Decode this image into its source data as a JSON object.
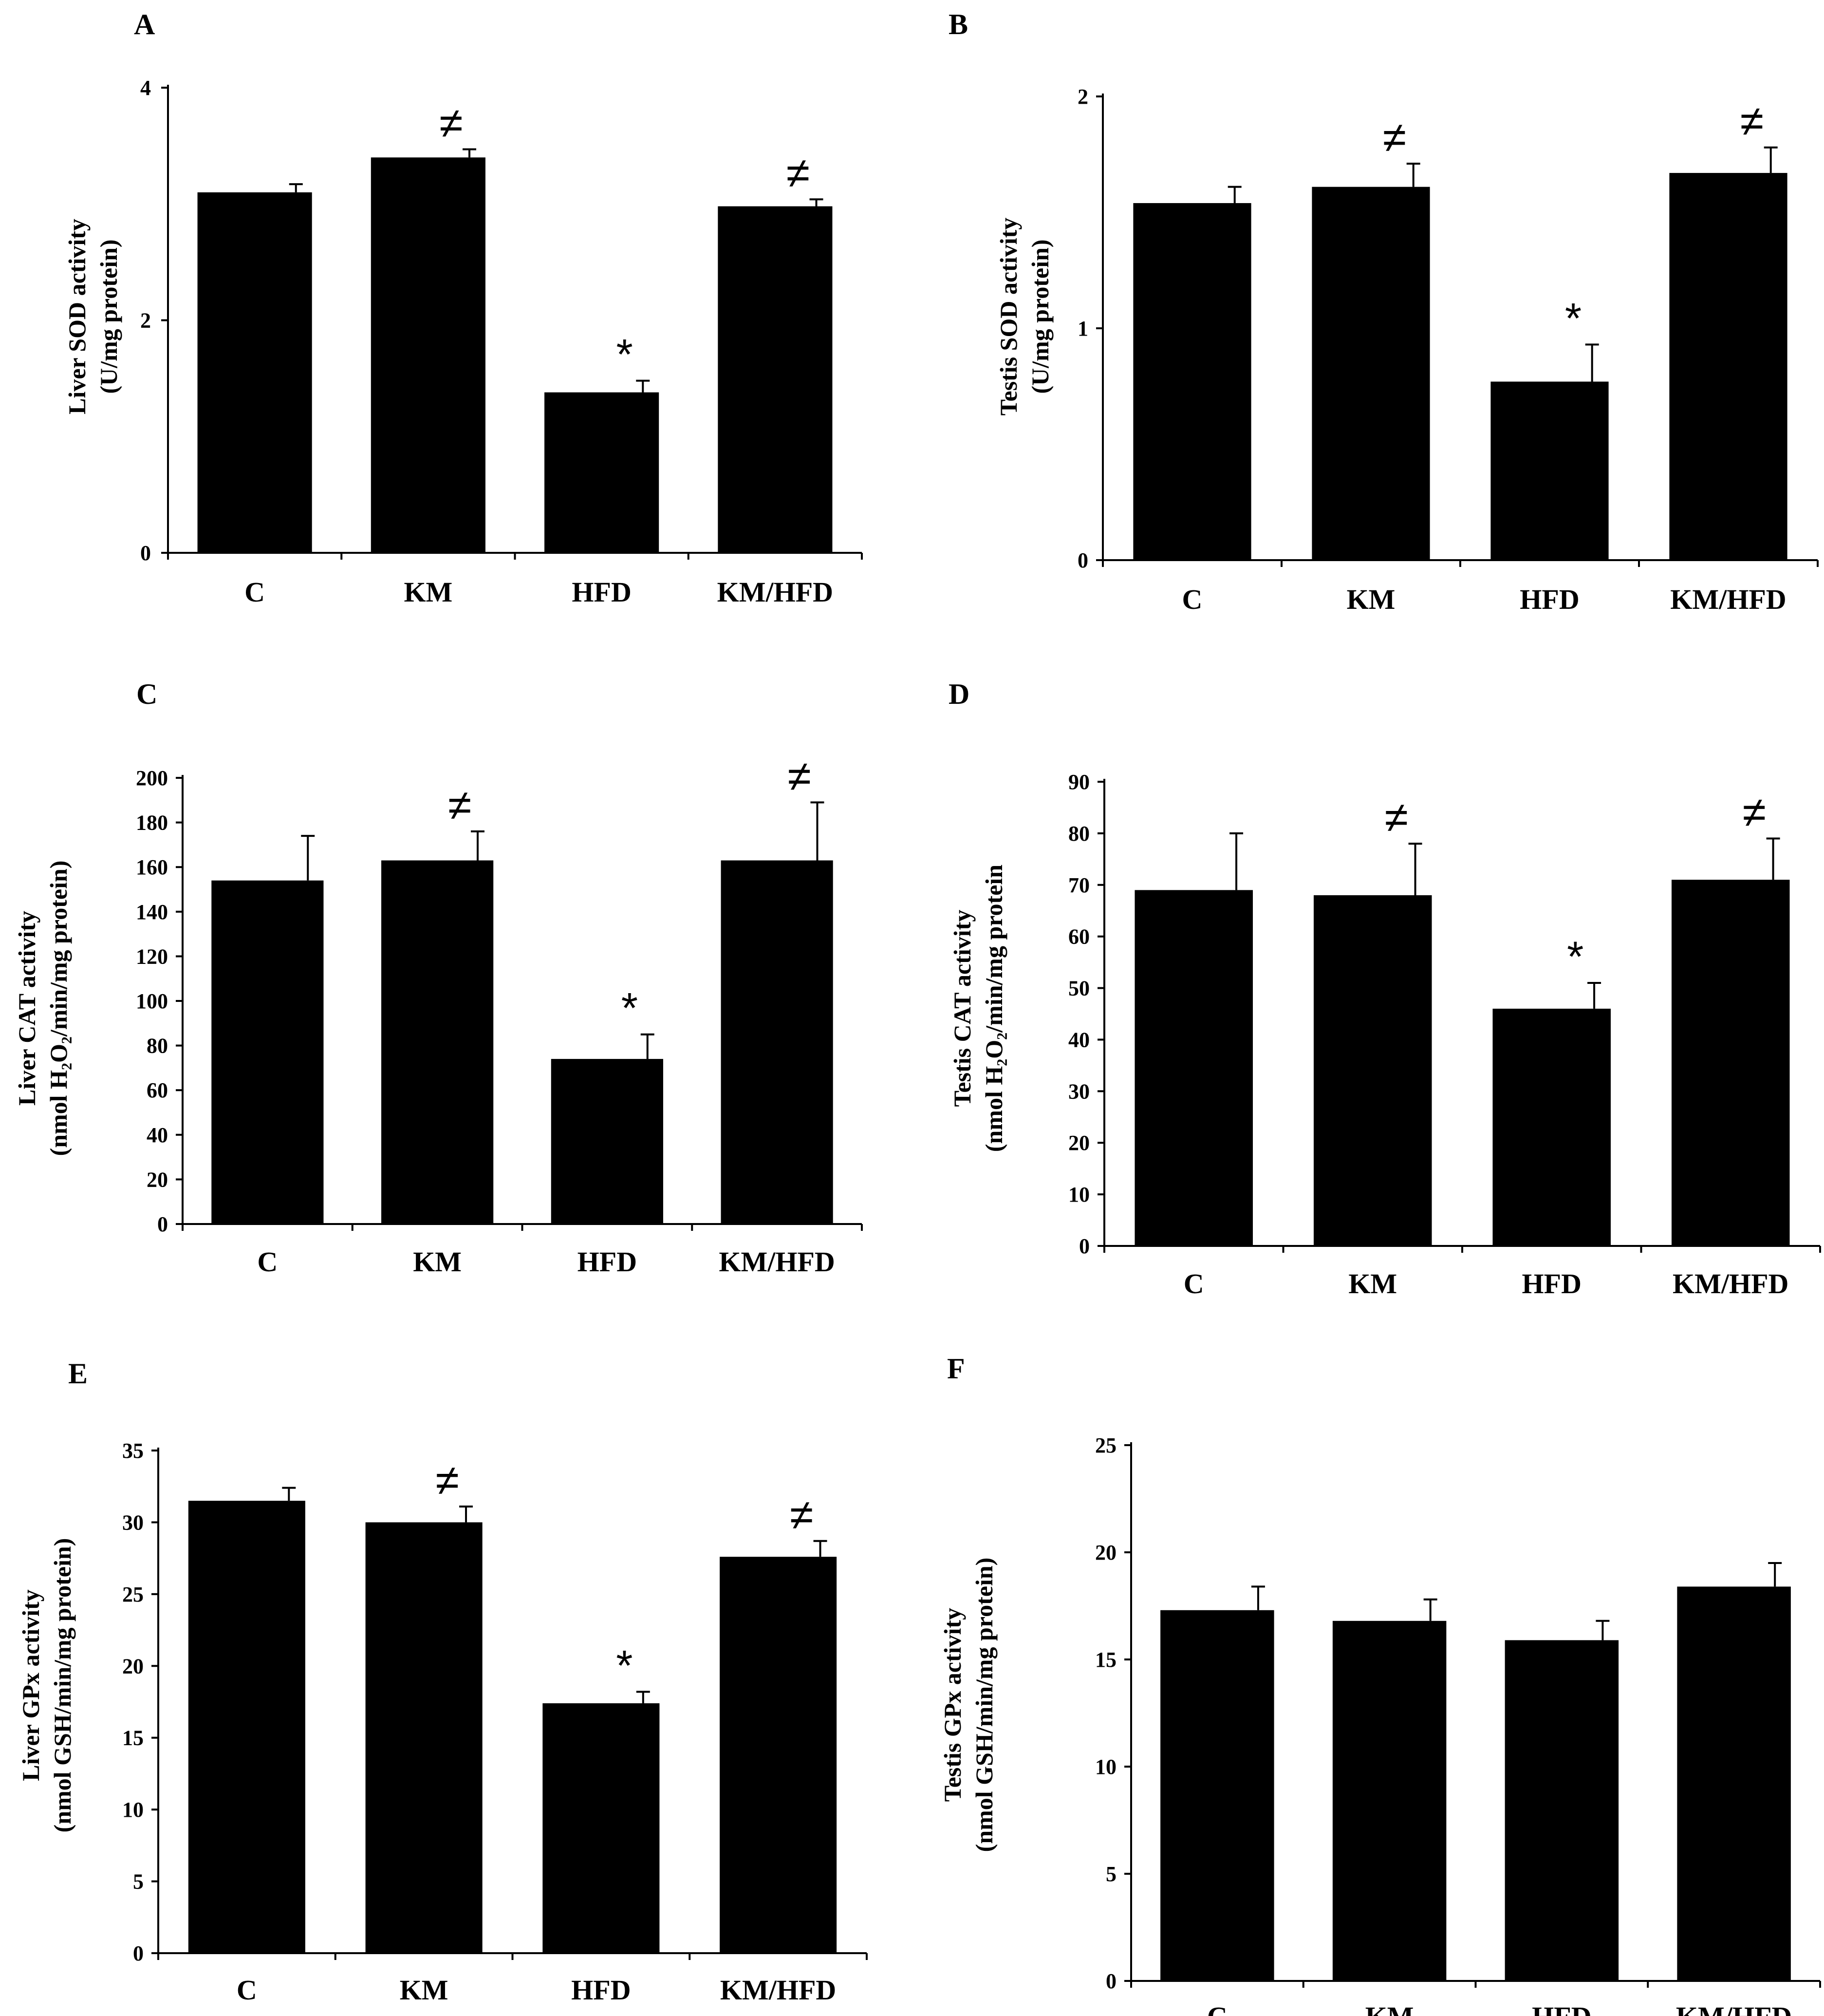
{
  "chart_data": [
    {
      "panel": "A",
      "type": "bar",
      "categories": [
        "C",
        "KM",
        "HFD",
        "KM/HFD"
      ],
      "values": [
        3.1,
        3.4,
        1.38,
        2.98
      ],
      "errors": [
        0.07,
        0.07,
        0.1,
        0.06
      ],
      "annotations": [
        "",
        "≠",
        "*",
        "≠"
      ],
      "ylabel_line1": "Liver SOD activity",
      "ylabel_line2": "(U/mg protein)",
      "ylim": [
        0,
        4
      ],
      "yticks": [
        "0",
        "2",
        "4"
      ],
      "ytick_values": [
        0,
        2,
        4
      ]
    },
    {
      "panel": "B",
      "type": "bar",
      "categories": [
        "C",
        "KM",
        "HFD",
        "KM/HFD"
      ],
      "values": [
        1.54,
        1.61,
        0.77,
        1.67
      ],
      "errors": [
        0.07,
        0.1,
        0.16,
        0.11
      ],
      "annotations": [
        "",
        "≠",
        "*",
        "≠"
      ],
      "ylabel_line1": "Testis SOD activity",
      "ylabel_line2": "(U/mg protein)",
      "ylim": [
        0,
        2
      ],
      "yticks": [
        "0",
        "1",
        "2"
      ],
      "ytick_values": [
        0,
        1,
        2
      ]
    },
    {
      "panel": "C",
      "type": "bar",
      "categories": [
        "C",
        "KM",
        "HFD",
        "KM/HFD"
      ],
      "values": [
        154,
        163,
        74,
        163
      ],
      "errors": [
        20,
        13,
        11,
        26
      ],
      "annotations": [
        "",
        "≠",
        "*",
        "≠"
      ],
      "ylabel_line1": "Liver CAT activity",
      "ylabel_line2": "(nmol H₂O₂/min/mg protein)",
      "ylim": [
        0,
        200
      ],
      "yticks": [
        "0",
        "20",
        "40",
        "60",
        "80",
        "100",
        "120",
        "140",
        "160",
        "180",
        "200"
      ],
      "ytick_values": [
        0,
        20,
        40,
        60,
        80,
        100,
        120,
        140,
        160,
        180,
        200
      ]
    },
    {
      "panel": "D",
      "type": "bar",
      "categories": [
        "C",
        "KM",
        "HFD",
        "KM/HFD"
      ],
      "values": [
        69,
        68,
        46,
        71
      ],
      "errors": [
        11,
        10,
        5,
        8
      ],
      "annotations": [
        "",
        "≠",
        "*",
        "≠"
      ],
      "ylabel_line1": "Testis CAT activity",
      "ylabel_line2": "(nmol H₂O₂/min/mg protein",
      "ylim": [
        0,
        90
      ],
      "yticks": [
        "0",
        "10",
        "20",
        "30",
        "40",
        "50",
        "60",
        "70",
        "80",
        "90"
      ],
      "ytick_values": [
        0,
        10,
        20,
        30,
        40,
        50,
        60,
        70,
        80,
        90
      ]
    },
    {
      "panel": "E",
      "type": "bar",
      "categories": [
        "C",
        "KM",
        "HFD",
        "KM/HFD"
      ],
      "values": [
        31.5,
        30,
        17.4,
        27.6
      ],
      "errors": [
        0.9,
        1.1,
        0.8,
        1.1
      ],
      "annotations": [
        "",
        "≠",
        "*",
        "≠"
      ],
      "ylabel_line1": "Liver GPx activity",
      "ylabel_line2": "(nmol GSH/min/mg protein)",
      "ylim": [
        0,
        35
      ],
      "yticks": [
        "0",
        "5",
        "10",
        "15",
        "20",
        "25",
        "30",
        "35"
      ],
      "ytick_values": [
        0,
        5,
        10,
        15,
        20,
        25,
        30,
        35
      ]
    },
    {
      "panel": "F",
      "type": "bar",
      "categories": [
        "C",
        "KM",
        "HFD",
        "KM/HFD"
      ],
      "values": [
        17.3,
        16.8,
        15.9,
        18.4
      ],
      "errors": [
        1.1,
        1.0,
        0.9,
        1.1
      ],
      "annotations": [
        "",
        "",
        "",
        ""
      ],
      "ylabel_line1": "Testis GPx activity",
      "ylabel_line2": "(nmol GSH/min/mg protein)",
      "ylim": [
        0,
        25
      ],
      "yticks": [
        "0",
        "5",
        "10",
        "15",
        "20",
        "25"
      ],
      "ytick_values": [
        0,
        5,
        10,
        15,
        20,
        25
      ]
    }
  ]
}
